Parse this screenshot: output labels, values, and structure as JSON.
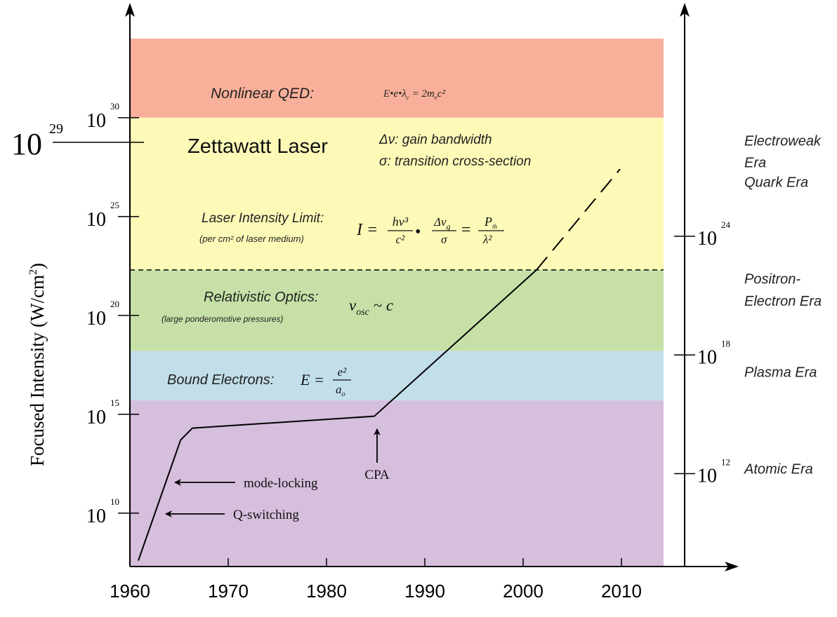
{
  "chart_data": {
    "type": "line",
    "ylabel_main": "Focused Intensity (W/cm",
    "ylabel_sup": "2",
    "ylabel_close": ")",
    "x_ticks": [
      {
        "label": "1960",
        "value": 1960
      },
      {
        "label": "1970",
        "value": 1970
      },
      {
        "label": "1980",
        "value": 1980
      },
      {
        "label": "1990",
        "value": 1990
      },
      {
        "label": "2000",
        "value": 2000
      },
      {
        "label": "2010",
        "value": 2010
      }
    ],
    "left_ticks": [
      {
        "base": "10",
        "exp": "10",
        "value": 10
      },
      {
        "base": "10",
        "exp": "15",
        "value": 15
      },
      {
        "base": "10",
        "exp": "20",
        "value": 20
      },
      {
        "base": "10",
        "exp": "25",
        "value": 25
      },
      {
        "base": "10",
        "exp": "30",
        "value": 30
      }
    ],
    "big_tick": {
      "base": "10",
      "exp": "29",
      "value": 29.5
    },
    "right_ticks": [
      {
        "base": "10",
        "exp": "12",
        "value": 12,
        "left_value": 12
      },
      {
        "base": "10",
        "exp": "18",
        "value": 18,
        "left_value": 18
      },
      {
        "base": "10",
        "exp": "24",
        "value": 24,
        "left_value": 24
      }
    ],
    "bands": [
      {
        "name": "Nonlinear QED",
        "ymin": 30,
        "ymax": 34,
        "color": "#f8b09a"
      },
      {
        "name": "Laser Intensity Limit",
        "ymin": 22.3,
        "ymax": 30,
        "color": "#fdfab8"
      },
      {
        "name": "Relativistic Optics",
        "ymin": 18.2,
        "ymax": 22.3,
        "color": "#c6e0a7"
      },
      {
        "name": "Bound Electrons",
        "ymin": 15.7,
        "ymax": 18.2,
        "color": "#c1dee9"
      },
      {
        "name": "Atomic",
        "ymin": 7.3,
        "ymax": 15.7,
        "color": "#d6bedd"
      }
    ],
    "limit_line": 22.3,
    "xlim": [
      1960,
      2015
    ],
    "ylim": [
      7.3,
      34
    ],
    "series_solid": [
      [
        1961,
        7.6
      ],
      [
        1965.3,
        13.7
      ],
      [
        1966.5,
        14.3
      ],
      [
        1985,
        14.9
      ],
      [
        2001.5,
        22.3
      ]
    ],
    "series_dashed": [
      [
        2001.5,
        22.3
      ],
      [
        2010,
        27.4
      ]
    ],
    "right_axis_labels": [
      {
        "text": "Electroweak",
        "y": 28.6
      },
      {
        "text": "Era",
        "y": 27.5
      },
      {
        "text": "Quark Era",
        "y": 26.5
      },
      {
        "text": "Positron-",
        "y": 21.6
      },
      {
        "text": "Electron Era",
        "y": 20.5
      },
      {
        "text": "Plasma Era",
        "y": 16.9
      },
      {
        "text": "Atomic Era",
        "y": 12
      }
    ],
    "annotations": {
      "nqed_label": "Nonlinear QED:",
      "nqed_eq": "E•e•λ",
      "nqed_eq_sub": "c",
      "nqed_eq_rhs": " =  2m",
      "nqed_eq_rhs_sub": "e",
      "nqed_eq_rhs_sup": "c²",
      "zettawatt": "Zettawatt Laser",
      "gain": "Δν: gain bandwidth",
      "cross": "σ: transition cross-section",
      "limit_label": "Laser Intensity Limit:",
      "limit_sub": "(per cm² of laser medium)",
      "eq_I": "I =",
      "eq_f1_num": "hν³",
      "eq_f1_den": "c²",
      "eq_dot": "•",
      "eq_f2_num": "Δν",
      "eq_f2_num_sub": "g",
      "eq_f2_den": "σ",
      "eq_eq": "=",
      "eq_f3_num": "P",
      "eq_f3_num_sub": "th",
      "eq_f3_den": "λ²",
      "rel_label": "Relativistic Optics:",
      "rel_sub": "(large ponderomotive pressures)",
      "rel_eq": "v",
      "rel_eq_sub": "osc",
      "rel_eq_rhs": " ~ c",
      "bound_label": "Bound Electrons:",
      "bound_eq": "E =",
      "bound_num": "e²",
      "bound_den": "a",
      "bound_den_sub": "o",
      "mode_locking": "mode-locking",
      "q_switching": "Q-switching",
      "cpa": "CPA"
    }
  }
}
